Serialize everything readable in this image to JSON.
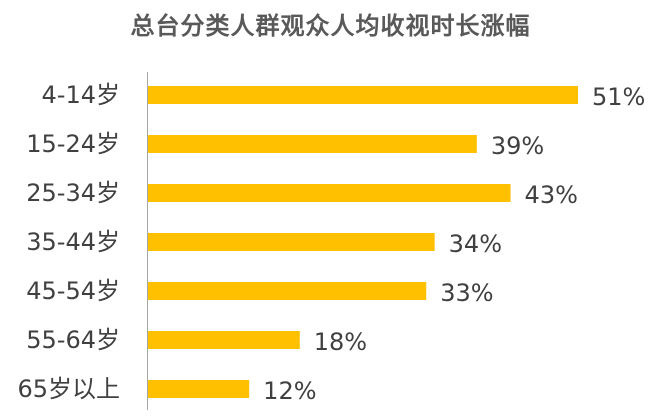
{
  "chart_data": {
    "type": "bar",
    "orientation": "horizontal",
    "title": "总台分类人群观众人均收视时长涨幅",
    "categories": [
      "4-14岁",
      "15-24岁",
      "25-34岁",
      "35-44岁",
      "45-54岁",
      "55-64岁",
      "65岁以上"
    ],
    "values": [
      51,
      39,
      43,
      34,
      33,
      18,
      12
    ],
    "value_labels": [
      "51%",
      "39%",
      "43%",
      "34%",
      "33%",
      "18%",
      "12%"
    ],
    "unit": "%",
    "xlim": [
      0,
      51
    ],
    "grid": false,
    "legend": "none",
    "colors": {
      "bar": "#FFC000",
      "axis": "#A6A6A6",
      "text": "#404040",
      "title": "#595959"
    }
  }
}
